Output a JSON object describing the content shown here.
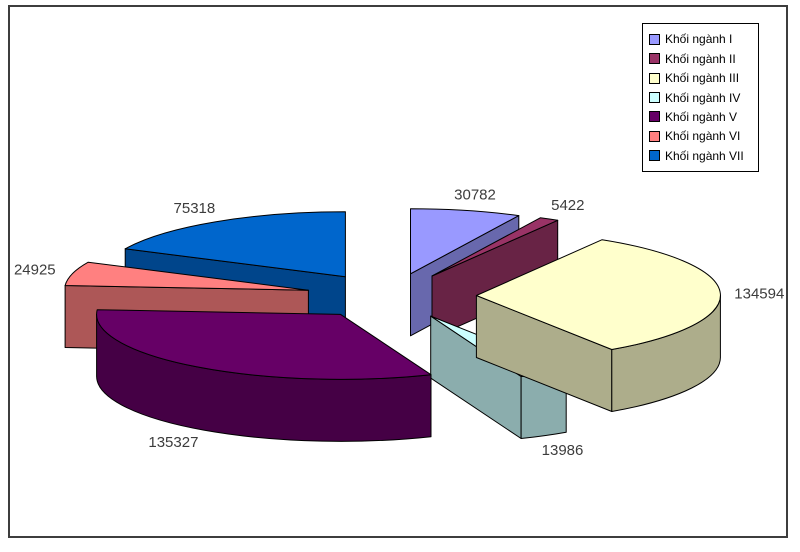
{
  "chart_data": {
    "type": "pie",
    "style": "3d-exploded",
    "title": "",
    "legend_position": "top-right",
    "start_angle_deg": 0,
    "direction": "clockwise",
    "categories": [
      "Khối ngành I",
      "Khối ngành II",
      "Khối ngành III",
      "Khối ngành IV",
      "Khối ngành V",
      "Khối ngành VI",
      "Khối ngành VII"
    ],
    "values": [
      30782,
      5422,
      134594,
      13986,
      135327,
      24925,
      75318
    ],
    "labels": [
      "30782",
      "5422",
      "134594",
      "13986",
      "135327",
      "24925",
      "75318"
    ],
    "colors": [
      "#9999FF",
      "#993366",
      "#FFFFCC",
      "#CCFFFF",
      "#660066",
      "#FF8080",
      "#0066CC"
    ]
  },
  "legend": {
    "items": [
      {
        "label": "Khối ngành I",
        "color": "#9999FF"
      },
      {
        "label": "Khối ngành II",
        "color": "#993366"
      },
      {
        "label": "Khối ngành III",
        "color": "#FFFFCC"
      },
      {
        "label": "Khối ngành IV",
        "color": "#CCFFFF"
      },
      {
        "label": "Khối ngành V",
        "color": "#660066"
      },
      {
        "label": "Khối ngành VI",
        "color": "#FF8080"
      },
      {
        "label": "Khối ngành VII",
        "color": "#0066CC"
      }
    ]
  }
}
